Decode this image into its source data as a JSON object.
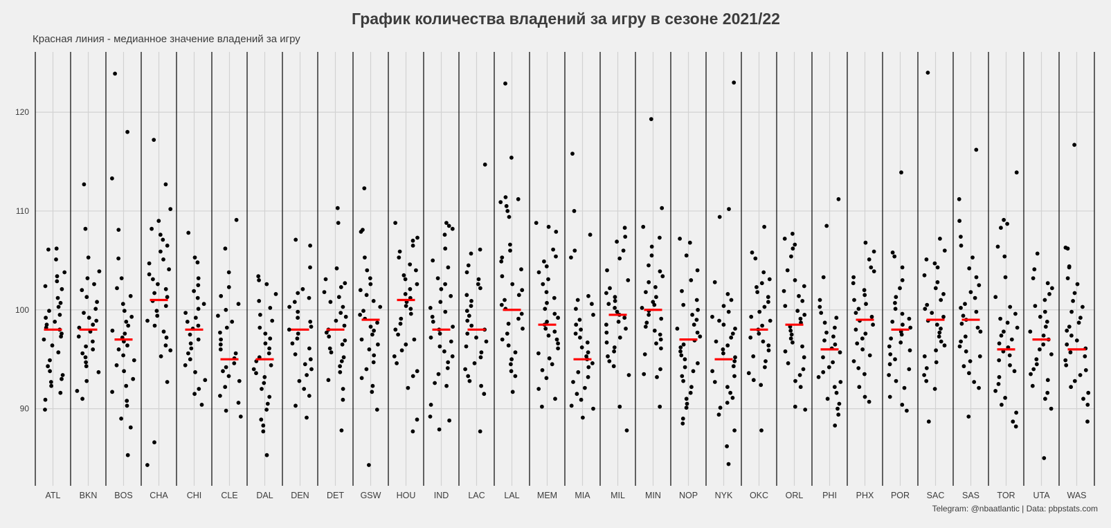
{
  "title": "График количества владений за игру в сезоне 2021/22",
  "subtitle": "Красная линия - медианное значение владений за игру",
  "caption": "Telegram: @nbaatlantic | Data: pbpstats.com",
  "colors": {
    "background": "#f0f0f0",
    "point": "#000000",
    "median": "#ff0000",
    "grid": "#d2d2d2",
    "separator": "#000000",
    "text": "#3c3c3c"
  },
  "chart_data": {
    "type": "scatter",
    "title": "График количества владений за игру в сезоне 2021/22",
    "subtitle": "Красная линия - медианное значение владений за игру",
    "xlabel": "",
    "ylabel": "",
    "ylim": [
      82.2,
      126.1
    ],
    "yticks": [
      90,
      100,
      110,
      120
    ],
    "grid": true,
    "categories": [
      "ATL",
      "BKN",
      "BOS",
      "CHA",
      "CHI",
      "CLE",
      "DAL",
      "DEN",
      "DET",
      "GSW",
      "HOU",
      "IND",
      "LAC",
      "LAL",
      "MEM",
      "MIA",
      "MIL",
      "MIN",
      "NOP",
      "NYK",
      "OKC",
      "ORL",
      "PHI",
      "PHX",
      "POR",
      "SAC",
      "SAS",
      "TOR",
      "UTA",
      "WAS"
    ],
    "medians": [
      98,
      98,
      97,
      101,
      98,
      95,
      95,
      98,
      98,
      99,
      101,
      98,
      98,
      100,
      98.5,
      95,
      99.5,
      100,
      97,
      95,
      98,
      98.5,
      96,
      99,
      98,
      99,
      99,
      96,
      97,
      96
    ],
    "values": [
      [
        106.2,
        106.1,
        105.1,
        103.8,
        103.4,
        102.9,
        102.4,
        102.1,
        101.2,
        100.7,
        100.3,
        99.9,
        99.5,
        99.2,
        98.8,
        98.5,
        98.2,
        98.0,
        97.6,
        97.3,
        97.0,
        96.4,
        95.7,
        94.9,
        94.3,
        93.8,
        93.4,
        93.0,
        92.7,
        92.3,
        91.6,
        90.9,
        89.9
      ],
      [
        112.7,
        108.2,
        105.3,
        103.9,
        103.2,
        102.6,
        102.0,
        101.3,
        100.8,
        100.1,
        99.7,
        99.2,
        98.9,
        98.5,
        98.2,
        97.8,
        97.3,
        96.8,
        96.3,
        96.0,
        95.6,
        95.2,
        94.7,
        94.3,
        93.7,
        92.8,
        91.8,
        91.0
      ],
      [
        123.9,
        118.0,
        113.3,
        108.1,
        105.2,
        103.2,
        102.2,
        101.4,
        100.6,
        99.9,
        99.3,
        98.8,
        98.4,
        97.9,
        97.6,
        97.2,
        96.8,
        96.4,
        96.0,
        95.4,
        94.9,
        94.4,
        93.8,
        93.0,
        92.3,
        91.7,
        90.8,
        90.3,
        89.0,
        88.1,
        85.3
      ],
      [
        117.2,
        112.7,
        110.2,
        109.0,
        108.2,
        107.6,
        107.1,
        106.5,
        105.9,
        105.1,
        104.7,
        104.1,
        103.6,
        103.1,
        102.6,
        102.1,
        101.7,
        101.3,
        100.9,
        100.4,
        99.9,
        99.4,
        98.9,
        98.4,
        97.8,
        97.2,
        96.4,
        95.9,
        95.3,
        92.7,
        86.6,
        84.3
      ],
      [
        107.8,
        105.3,
        104.8,
        103.2,
        102.5,
        101.9,
        101.2,
        100.6,
        100.1,
        99.7,
        99.2,
        98.8,
        98.4,
        98.1,
        97.5,
        97.0,
        96.6,
        96.1,
        95.6,
        95.0,
        94.4,
        93.7,
        92.9,
        92.0,
        91.5,
        90.4
      ],
      [
        109.1,
        106.2,
        103.8,
        102.3,
        101.4,
        100.6,
        100.0,
        99.4,
        98.8,
        98.2,
        97.7,
        97.0,
        96.5,
        96.0,
        95.6,
        95.1,
        94.6,
        94.2,
        93.8,
        93.3,
        92.8,
        92.2,
        91.3,
        90.6,
        89.8,
        89.2
      ],
      [
        103.4,
        103.0,
        102.6,
        101.6,
        100.9,
        100.2,
        99.5,
        98.9,
        98.2,
        97.6,
        97.1,
        96.6,
        96.1,
        95.6,
        95.2,
        94.8,
        94.4,
        94.0,
        93.6,
        93.2,
        92.6,
        92.0,
        91.2,
        90.5,
        89.9,
        88.9,
        88.3,
        87.7,
        85.3
      ],
      [
        107.1,
        106.5,
        104.3,
        102.1,
        101.7,
        101.2,
        100.8,
        100.3,
        99.8,
        99.2,
        98.8,
        98.3,
        98.0,
        97.6,
        97.1,
        96.6,
        96.1,
        95.5,
        95.0,
        94.5,
        94.0,
        93.4,
        92.8,
        92.0,
        91.3,
        90.3,
        89.1
      ],
      [
        110.3,
        108.8,
        104.2,
        103.1,
        102.7,
        102.3,
        101.8,
        101.3,
        100.8,
        100.3,
        99.7,
        99.3,
        98.9,
        98.4,
        98.0,
        97.7,
        97.3,
        96.9,
        96.5,
        96.1,
        95.7,
        95.2,
        94.8,
        94.3,
        93.7,
        92.9,
        92.0,
        90.9,
        87.8
      ],
      [
        112.3,
        108.1,
        107.9,
        105.3,
        104.0,
        103.2,
        102.6,
        102.0,
        101.5,
        100.9,
        100.3,
        99.9,
        99.5,
        99.1,
        98.7,
        98.3,
        97.9,
        97.5,
        97.0,
        96.5,
        96.0,
        95.4,
        94.7,
        94.0,
        93.1,
        92.3,
        91.7,
        89.9,
        84.3
      ],
      [
        108.8,
        107.3,
        107.0,
        106.5,
        105.9,
        105.3,
        104.6,
        104.0,
        103.5,
        103.1,
        102.6,
        102.1,
        101.6,
        101.2,
        100.8,
        100.4,
        100.1,
        99.6,
        99.1,
        98.6,
        98.0,
        97.5,
        97.0,
        96.5,
        95.9,
        95.3,
        94.6,
        93.8,
        93.3,
        92.1,
        88.9,
        87.7
      ],
      [
        108.8,
        108.5,
        108.2,
        107.6,
        106.2,
        105.0,
        104.3,
        103.2,
        102.6,
        102.1,
        101.4,
        100.8,
        100.2,
        99.8,
        99.3,
        98.8,
        98.3,
        98.0,
        97.6,
        97.2,
        96.8,
        96.3,
        95.8,
        95.3,
        94.7,
        94.1,
        93.5,
        92.6,
        92.3,
        90.4,
        89.2,
        88.8,
        87.9
      ],
      [
        114.7,
        106.1,
        105.7,
        104.5,
        103.8,
        103.1,
        102.6,
        102.2,
        101.5,
        100.9,
        100.4,
        99.9,
        99.4,
        98.9,
        98.4,
        98.0,
        97.6,
        97.2,
        96.8,
        96.3,
        95.7,
        95.2,
        94.6,
        94.0,
        93.3,
        92.8,
        92.3,
        91.5,
        87.7
      ],
      [
        122.9,
        115.4,
        111.4,
        111.2,
        110.9,
        110.5,
        110.0,
        109.4,
        106.6,
        106.0,
        105.3,
        104.9,
        104.1,
        103.4,
        102.6,
        102.0,
        101.5,
        101.0,
        100.5,
        100.1,
        99.6,
        99.1,
        98.6,
        98.1,
        97.6,
        97.0,
        96.4,
        95.7,
        95.0,
        94.5,
        93.8,
        93.3,
        91.7
      ],
      [
        108.8,
        108.4,
        107.9,
        106.1,
        105.4,
        104.9,
        104.4,
        103.8,
        103.1,
        102.6,
        101.8,
        101.2,
        100.7,
        100.1,
        99.6,
        99.2,
        98.8,
        98.5,
        98.1,
        97.8,
        97.4,
        97.0,
        96.6,
        96.1,
        95.6,
        95.1,
        94.5,
        93.9,
        93.1,
        92.0,
        91.0,
        90.2
      ],
      [
        115.8,
        110.0,
        107.6,
        106.0,
        105.3,
        101.4,
        101.0,
        100.6,
        100.1,
        99.5,
        99.0,
        98.5,
        98.0,
        97.6,
        97.2,
        96.7,
        96.2,
        95.7,
        95.3,
        95.0,
        94.6,
        94.2,
        93.7,
        93.2,
        92.7,
        92.1,
        91.5,
        90.9,
        90.3,
        90.0,
        89.1
      ],
      [
        108.3,
        107.4,
        106.9,
        106.0,
        105.2,
        104.0,
        103.0,
        102.2,
        101.7,
        101.3,
        100.9,
        100.6,
        100.2,
        99.8,
        99.5,
        99.2,
        98.8,
        98.5,
        98.1,
        97.7,
        97.2,
        96.7,
        96.2,
        95.8,
        95.3,
        94.8,
        94.3,
        93.4,
        90.2,
        87.8
      ],
      [
        119.3,
        110.3,
        108.4,
        107.3,
        106.4,
        105.5,
        104.5,
        103.9,
        103.4,
        102.8,
        102.3,
        101.8,
        101.3,
        100.8,
        100.5,
        100.2,
        99.9,
        99.5,
        99.1,
        98.7,
        98.3,
        97.9,
        97.5,
        97.0,
        96.6,
        96.1,
        95.5,
        94.0,
        93.5,
        93.2,
        90.2
      ],
      [
        107.2,
        106.8,
        105.5,
        104.0,
        103.0,
        101.9,
        101.0,
        100.5,
        100.0,
        99.5,
        99.0,
        98.5,
        98.1,
        97.7,
        97.3,
        96.9,
        96.5,
        96.2,
        95.8,
        95.4,
        95.0,
        94.6,
        94.2,
        93.8,
        93.3,
        92.8,
        92.2,
        91.6,
        91.0,
        90.5,
        90.1,
        89.0,
        88.5
      ],
      [
        123.0,
        110.2,
        109.4,
        102.8,
        101.6,
        101.0,
        100.4,
        99.8,
        99.3,
        98.9,
        98.5,
        98.1,
        97.6,
        97.2,
        96.8,
        96.4,
        96.0,
        95.6,
        95.2,
        94.8,
        94.3,
        93.8,
        93.3,
        92.7,
        92.2,
        91.6,
        91.1,
        90.6,
        90.1,
        89.4,
        87.8,
        86.2,
        84.4
      ],
      [
        108.4,
        105.8,
        105.2,
        103.8,
        103.1,
        102.7,
        102.3,
        101.8,
        101.3,
        100.8,
        100.3,
        99.8,
        99.3,
        98.9,
        98.4,
        98.0,
        97.6,
        97.2,
        96.8,
        96.4,
        95.9,
        95.3,
        94.8,
        94.2,
        93.6,
        92.9,
        92.4,
        87.8
      ],
      [
        107.7,
        107.2,
        106.6,
        106.2,
        105.4,
        104.0,
        103.0,
        102.4,
        101.9,
        101.4,
        100.9,
        100.4,
        99.9,
        99.5,
        99.1,
        98.7,
        98.3,
        97.9,
        97.5,
        97.1,
        96.7,
        96.3,
        95.8,
        95.2,
        94.6,
        94.0,
        93.4,
        92.8,
        92.2,
        90.2,
        89.9
      ],
      [
        111.2,
        108.5,
        103.3,
        101.0,
        100.3,
        99.7,
        99.2,
        98.7,
        98.2,
        97.7,
        97.3,
        96.9,
        96.5,
        96.1,
        95.7,
        95.2,
        94.7,
        94.2,
        93.7,
        93.2,
        92.7,
        92.2,
        91.6,
        91.0,
        90.5,
        90.0,
        89.4,
        88.3
      ],
      [
        106.8,
        105.9,
        105.1,
        104.3,
        103.9,
        103.3,
        102.7,
        102.0,
        101.5,
        101.0,
        100.6,
        100.1,
        99.7,
        99.3,
        98.9,
        98.5,
        98.0,
        97.6,
        97.1,
        96.6,
        96.0,
        95.4,
        94.8,
        94.1,
        93.5,
        92.2,
        91.2,
        90.7
      ],
      [
        113.9,
        105.8,
        105.4,
        104.3,
        103.0,
        102.2,
        101.3,
        100.7,
        100.1,
        99.6,
        99.1,
        98.8,
        98.5,
        98.2,
        97.8,
        97.5,
        97.1,
        96.7,
        96.3,
        95.9,
        95.5,
        95.0,
        94.5,
        94.0,
        93.4,
        92.8,
        92.1,
        91.2,
        90.4,
        89.8
      ],
      [
        124.0,
        107.2,
        106.0,
        105.1,
        104.7,
        104.3,
        103.5,
        102.8,
        102.2,
        101.6,
        101.0,
        100.5,
        100.1,
        99.7,
        99.3,
        98.9,
        98.5,
        98.1,
        97.7,
        97.3,
        96.8,
        96.4,
        95.9,
        95.3,
        94.7,
        94.1,
        93.4,
        92.8,
        92.0,
        88.7
      ],
      [
        116.2,
        111.2,
        109.0,
        107.4,
        106.5,
        105.3,
        104.2,
        103.3,
        102.5,
        101.8,
        101.2,
        100.6,
        100.2,
        99.8,
        99.4,
        99.0,
        98.6,
        98.2,
        97.8,
        97.3,
        96.8,
        96.3,
        95.8,
        95.3,
        94.8,
        94.3,
        93.6,
        92.7,
        92.1,
        89.2
      ],
      [
        113.9,
        109.1,
        108.7,
        108.3,
        106.4,
        105.4,
        103.3,
        101.3,
        100.3,
        99.6,
        99.1,
        98.7,
        98.2,
        97.8,
        97.4,
        97.0,
        96.6,
        96.2,
        95.8,
        95.4,
        94.9,
        94.4,
        93.8,
        93.2,
        92.5,
        91.8,
        91.1,
        90.4,
        89.6,
        88.7,
        88.2
      ],
      [
        105.7,
        104.1,
        103.2,
        102.7,
        102.2,
        101.6,
        101.0,
        100.4,
        99.8,
        99.3,
        98.8,
        98.3,
        97.8,
        97.4,
        97.0,
        96.5,
        96.0,
        95.5,
        95.0,
        94.5,
        94.0,
        93.5,
        92.9,
        92.3,
        91.6,
        91.0,
        90.0,
        85.0
      ],
      [
        116.7,
        106.3,
        106.2,
        104.4,
        104.3,
        103.2,
        102.6,
        101.7,
        100.9,
        100.3,
        99.8,
        99.2,
        98.7,
        98.3,
        97.9,
        97.4,
        96.9,
        96.5,
        96.1,
        95.7,
        95.3,
        94.9,
        94.4,
        93.9,
        93.4,
        92.8,
        92.2,
        91.6,
        91.0,
        90.4,
        88.7
      ]
    ]
  }
}
